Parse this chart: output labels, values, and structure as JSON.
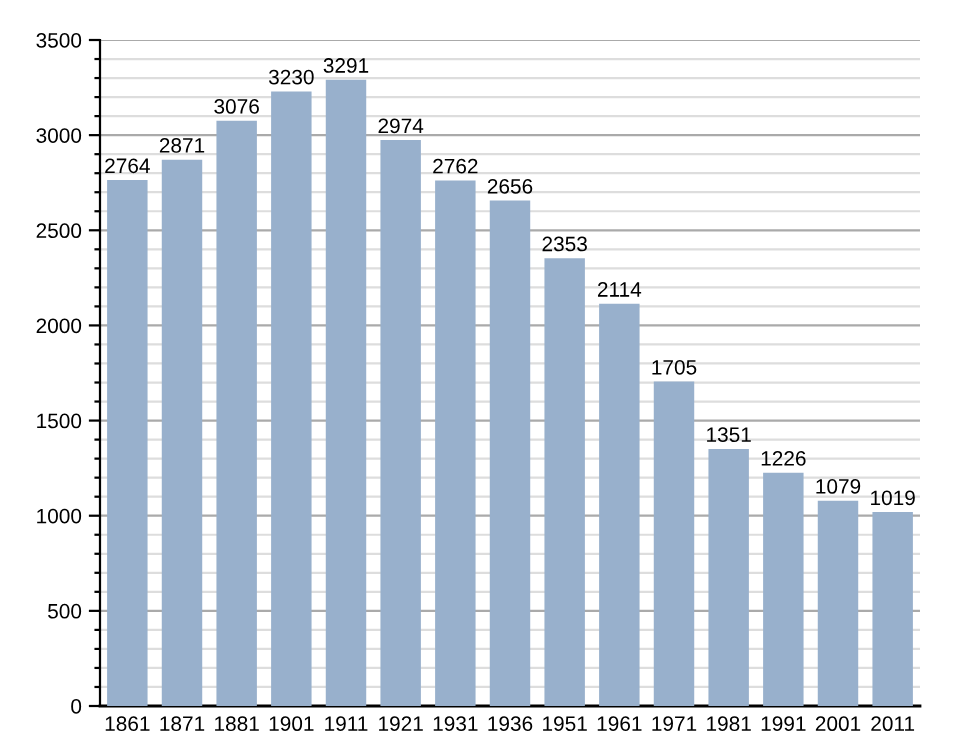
{
  "chart_data": {
    "type": "bar",
    "categories": [
      "1861",
      "1871",
      "1881",
      "1901",
      "1911",
      "1921",
      "1931",
      "1936",
      "1951",
      "1961",
      "1971",
      "1981",
      "1991",
      "2001",
      "2011"
    ],
    "values": [
      2764,
      2871,
      3076,
      3230,
      3291,
      2974,
      2762,
      2656,
      2353,
      2114,
      1705,
      1351,
      1226,
      1079,
      1019
    ],
    "color": "#98b0cc",
    "data_labels": true,
    "ylim": [
      0,
      3500
    ],
    "yticks": [
      0,
      {
        "value": 100,
        "label": null
      },
      {
        "value": 200,
        "label": null
      },
      {
        "value": 300,
        "label": null
      },
      {
        "value": 400,
        "label": null
      },
      500,
      {
        "value": 600,
        "label": null
      },
      {
        "value": 700,
        "label": null
      },
      {
        "value": 800,
        "label": null
      },
      {
        "value": 900,
        "label": null
      },
      1000,
      {
        "value": 1100,
        "label": null
      },
      {
        "value": 1200,
        "label": null
      },
      {
        "value": 1300,
        "label": null
      },
      {
        "value": 1400,
        "label": null
      },
      1500,
      {
        "value": 1600,
        "label": null
      },
      {
        "value": 1700,
        "label": null
      },
      {
        "value": 1800,
        "label": null
      },
      {
        "value": 1900,
        "label": null
      },
      2000,
      {
        "value": 2100,
        "label": null
      },
      {
        "value": 2200,
        "label": null
      },
      {
        "value": 2300,
        "label": null
      },
      {
        "value": 2400,
        "label": null
      },
      2500,
      {
        "value": 2600,
        "label": null
      },
      {
        "value": 2700,
        "label": null
      },
      {
        "value": 2800,
        "label": null
      },
      {
        "value": 2900,
        "label": null
      },
      3000,
      {
        "value": 3100,
        "label": null
      },
      {
        "value": 3200,
        "label": null
      },
      {
        "value": 3300,
        "label": null
      },
      {
        "value": 3400,
        "label": null
      },
      3500
    ],
    "grid": "y"
  }
}
